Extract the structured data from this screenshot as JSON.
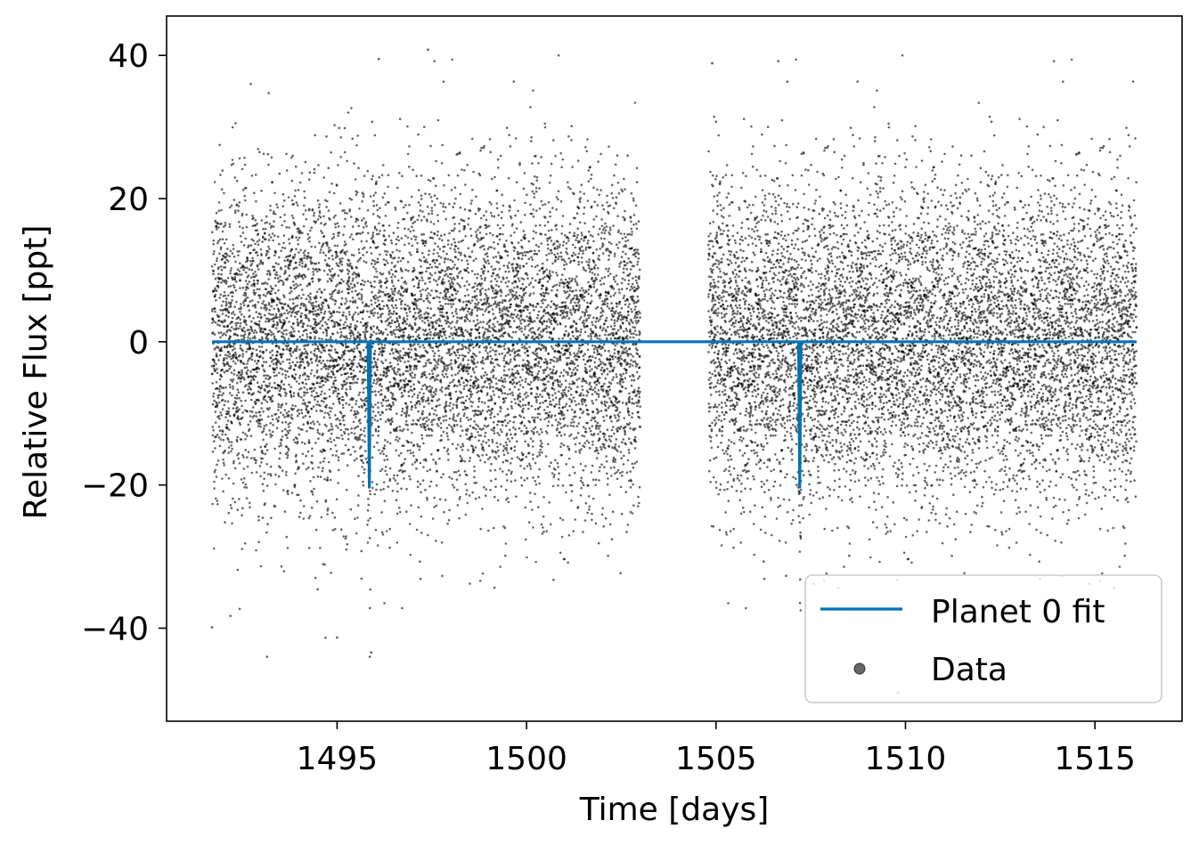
{
  "chart_data": {
    "type": "scatter",
    "xlabel": "Time [days]",
    "ylabel": "Relative Flux [ppt]",
    "xlim": [
      1490.5,
      1517.3
    ],
    "ylim": [
      -53,
      45.5
    ],
    "xticks": [
      1495,
      1500,
      1505,
      1510,
      1515
    ],
    "yticks": [
      40,
      20,
      0,
      -20,
      -40
    ],
    "xtick_labels": [
      "1495",
      "1500",
      "1505",
      "1510",
      "1515"
    ],
    "ytick_labels": [
      "40",
      "20",
      "0",
      "−20",
      "−40"
    ],
    "grid": false,
    "legend": {
      "position": "lower-right",
      "entries": [
        "Planet 0 fit",
        "Data"
      ]
    },
    "colors": {
      "fit": "#0072b2",
      "data": "#000000"
    },
    "series": [
      {
        "name": "Data",
        "kind": "scatter",
        "segments": [
          [
            1491.7,
            1503.0
          ],
          [
            1504.8,
            1516.1
          ]
        ],
        "scatter_sd": 11,
        "color": "#000000",
        "notable_outliers": [
          {
            "x": 1497.4,
            "y": 40.8
          },
          {
            "x": 1496.1,
            "y": 39.5
          },
          {
            "x": 1504.9,
            "y": 38.9
          },
          {
            "x": 1495.9,
            "y": -43.4
          },
          {
            "x": 1491.7,
            "y": -39.9
          },
          {
            "x": 1495.0,
            "y": -41.3
          },
          {
            "x": 1509.8,
            "y": -49.0
          }
        ]
      },
      {
        "name": "Planet 0 fit",
        "kind": "line",
        "color": "#0072b2",
        "x": [
          1491.7,
          1495.82,
          1495.85,
          1495.88,
          1507.18,
          1507.21,
          1507.24,
          1516.1
        ],
        "y": [
          0,
          0,
          -20.3,
          0,
          0,
          -20.3,
          0,
          0
        ]
      }
    ]
  }
}
